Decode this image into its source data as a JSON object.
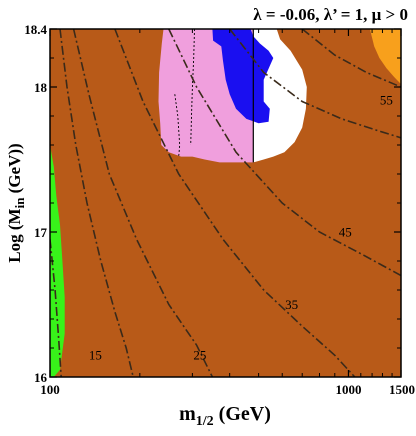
{
  "chart_data": {
    "type": "area",
    "title": "λ = -0.06, λ’ = 1,  μ > 0",
    "xlabel": "m",
    "xlabel_sub": "1/2",
    "xlabel_unit": " (GeV)",
    "ylabel": "Log (M",
    "ylabel_sub": "in",
    "ylabel_unit": " (GeV))",
    "xlim": [
      100,
      1500
    ],
    "ylim": [
      16,
      18.4
    ],
    "x_scale": "log",
    "x_ticks": [
      {
        "value": 100,
        "label": "100"
      },
      {
        "value": 1000,
        "label": "1000"
      },
      {
        "value": 1500,
        "label": "1500"
      }
    ],
    "y_ticks": [
      {
        "value": 16,
        "label": "16"
      },
      {
        "value": 17,
        "label": "17"
      },
      {
        "value": 18,
        "label": "18"
      },
      {
        "value": 18.4,
        "label": "18.4"
      }
    ],
    "colors": {
      "background_region": "#b85a18",
      "pink_region": "#f09fdd",
      "blue_region": "#1a0ff0",
      "white_region": "#ffffff",
      "green_region": "#38f21a",
      "orange_region": "#f8a01c",
      "contour_line": "#3a2a1a",
      "frame": "#000000"
    },
    "regions": [
      {
        "color_key": "pink_region",
        "boundary": [
          [
            240,
            18.4
          ],
          [
            237,
            18.3
          ],
          [
            232,
            18.1
          ],
          [
            231,
            17.9
          ],
          [
            234,
            17.75
          ],
          [
            236,
            17.6
          ],
          [
            250,
            17.55
          ],
          [
            275,
            17.52
          ],
          [
            300,
            17.52
          ],
          [
            330,
            17.5
          ],
          [
            370,
            17.48
          ],
          [
            420,
            17.48
          ],
          [
            480,
            17.48
          ],
          [
            480,
            18.4
          ]
        ]
      },
      {
        "color_key": "white_region",
        "boundary": [
          [
            480,
            18.4
          ],
          [
            480,
            17.48
          ],
          [
            520,
            17.5
          ],
          [
            560,
            17.52
          ],
          [
            610,
            17.55
          ],
          [
            660,
            17.62
          ],
          [
            700,
            17.72
          ],
          [
            720,
            17.85
          ],
          [
            725,
            18.0
          ],
          [
            700,
            18.12
          ],
          [
            640,
            18.25
          ],
          [
            590,
            18.33
          ],
          [
            575,
            18.4
          ]
        ]
      },
      {
        "color_key": "blue_region",
        "boundary": [
          [
            350,
            18.4
          ],
          [
            352,
            18.32
          ],
          [
            375,
            18.28
          ],
          [
            380,
            18.18
          ],
          [
            388,
            18.05
          ],
          [
            400,
            17.95
          ],
          [
            420,
            17.85
          ],
          [
            455,
            17.78
          ],
          [
            500,
            17.75
          ],
          [
            540,
            17.76
          ],
          [
            545,
            17.85
          ],
          [
            520,
            17.9
          ],
          [
            520,
            18.05
          ],
          [
            560,
            18.2
          ],
          [
            540,
            18.25
          ],
          [
            505,
            18.3
          ],
          [
            480,
            18.35
          ],
          [
            470,
            18.4
          ]
        ]
      },
      {
        "color_key": "green_region",
        "boundary": [
          [
            100,
            17.6
          ],
          [
            103,
            17.45
          ],
          [
            105,
            17.25
          ],
          [
            108,
            17.05
          ],
          [
            110,
            16.8
          ],
          [
            112,
            16.55
          ],
          [
            112,
            16.3
          ],
          [
            108,
            16.05
          ],
          [
            103,
            16.0
          ],
          [
            100,
            16.0
          ]
        ]
      },
      {
        "color_key": "orange_region",
        "boundary": [
          [
            1180,
            18.4
          ],
          [
            1220,
            18.28
          ],
          [
            1270,
            18.2
          ],
          [
            1340,
            18.13
          ],
          [
            1420,
            18.07
          ],
          [
            1500,
            18.02
          ],
          [
            1500,
            18.4
          ]
        ]
      }
    ],
    "solid_lines": [
      [
        [
          480,
          18.4
        ],
        [
          480,
          17.48
        ]
      ]
    ],
    "dotted_lines": [
      [
        [
          305,
          18.4
        ],
        [
          303,
          18.2
        ],
        [
          300,
          18.0
        ],
        [
          298,
          17.8
        ],
        [
          296,
          17.6
        ]
      ],
      [
        [
          262,
          17.95
        ],
        [
          268,
          17.8
        ],
        [
          272,
          17.6
        ],
        [
          270,
          17.52
        ]
      ]
    ],
    "contours": [
      {
        "label": "15",
        "label_at": [
          142,
          16.12
        ],
        "points": [
          [
            108,
            18.4
          ],
          [
            114,
            18.0
          ],
          [
            122,
            17.6
          ],
          [
            133,
            17.2
          ],
          [
            148,
            16.8
          ],
          [
            165,
            16.45
          ],
          [
            180,
            16.2
          ],
          [
            190,
            16.0
          ]
        ]
      },
      {
        "label": "25",
        "label_at": [
          318,
          16.12
        ],
        "points": [
          [
            120,
            18.4
          ],
          [
            135,
            17.95
          ],
          [
            158,
            17.4
          ],
          [
            195,
            16.95
          ],
          [
            250,
            16.5
          ],
          [
            310,
            16.22
          ],
          [
            350,
            16.0
          ]
        ]
      },
      {
        "label": "35",
        "label_at": [
          645,
          16.47
        ],
        "points": [
          [
            165,
            18.4
          ],
          [
            205,
            17.9
          ],
          [
            270,
            17.4
          ],
          [
            380,
            16.95
          ],
          [
            520,
            16.6
          ],
          [
            700,
            16.35
          ],
          [
            900,
            16.15
          ],
          [
            1050,
            16.0
          ]
        ]
      },
      {
        "label": "45",
        "label_at": [
          975,
          16.97
        ],
        "points": [
          [
            250,
            18.4
          ],
          [
            310,
            18.0
          ],
          [
            420,
            17.55
          ],
          [
            600,
            17.2
          ],
          [
            800,
            17.0
          ],
          [
            1100,
            16.85
          ],
          [
            1500,
            16.7
          ]
        ]
      },
      {
        "label": "55",
        "label_at": [
          1340,
          17.88
        ],
        "points": [
          [
            400,
            18.4
          ],
          [
            520,
            18.1
          ],
          [
            700,
            17.9
          ],
          [
            950,
            17.78
          ],
          [
            1250,
            17.7
          ],
          [
            1500,
            17.65
          ]
        ]
      },
      {
        "label": "",
        "label_at": null,
        "points": [
          [
            700,
            18.4
          ],
          [
            900,
            18.22
          ],
          [
            1150,
            18.1
          ],
          [
            1500,
            18.0
          ]
        ]
      },
      {
        "label": "",
        "label_at": null,
        "points": [
          [
            100,
            16.95
          ],
          [
            104,
            16.6
          ],
          [
            107,
            16.25
          ],
          [
            109,
            16.0
          ]
        ]
      }
    ]
  }
}
